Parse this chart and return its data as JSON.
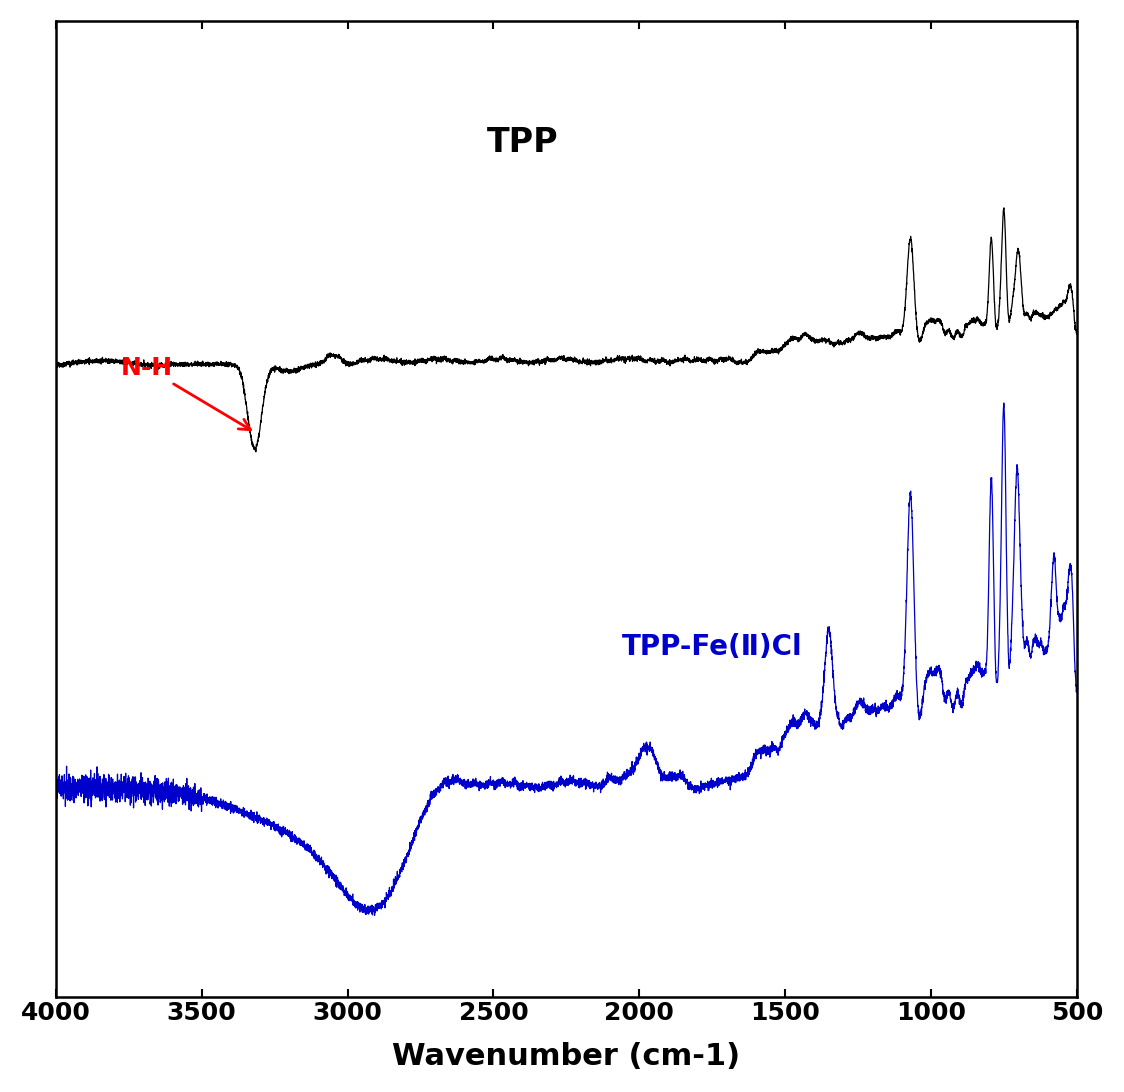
{
  "xlabel": "Wavenumber (cm-1)",
  "xlim": [
    4000,
    500
  ],
  "tpp_label": "TPP",
  "tpp_fe_label": "TPP-Fe(Ⅱ)Cl",
  "tpp_color": "#000000",
  "tpp_fe_color": "#0000CC",
  "nh_label": "N-H",
  "nh_color": "#FF0000",
  "xticks": [
    4000,
    3500,
    3000,
    2500,
    2000,
    1500,
    1000,
    500
  ],
  "background_color": "#ffffff"
}
